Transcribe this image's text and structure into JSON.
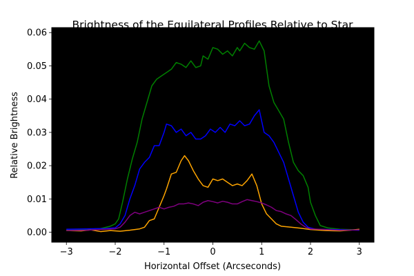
{
  "chart_data": {
    "type": "line",
    "title": "Brightness of the Equilateral Profiles Relative to Star",
    "xlabel": "Horizontal Offset (Arcseconds)",
    "ylabel": "Relative Brightness",
    "xlim": [
      -3.3,
      3.3
    ],
    "ylim": [
      -0.003,
      0.0615
    ],
    "xticks": [
      -3,
      -2,
      -1,
      0,
      1,
      2,
      3
    ],
    "xtick_labels": [
      "−3",
      "−2",
      "−1",
      "0",
      "1",
      "2",
      "3"
    ],
    "yticks": [
      0.0,
      0.01,
      0.02,
      0.03,
      0.04,
      0.05,
      0.06
    ],
    "ytick_labels": [
      "0.00",
      "0.01",
      "0.02",
      "0.03",
      "0.04",
      "0.05",
      "0.06"
    ],
    "plot_background": "#000000",
    "grid": false,
    "legend": "none",
    "series": [
      {
        "color": "#008000",
        "points": [
          [
            -3.0,
            0.0008
          ],
          [
            -2.6,
            0.0009
          ],
          [
            -2.3,
            0.0011
          ],
          [
            -2.1,
            0.0018
          ],
          [
            -2.0,
            0.0025
          ],
          [
            -1.93,
            0.004
          ],
          [
            -1.85,
            0.009
          ],
          [
            -1.75,
            0.016
          ],
          [
            -1.65,
            0.022
          ],
          [
            -1.55,
            0.027
          ],
          [
            -1.45,
            0.034
          ],
          [
            -1.35,
            0.039
          ],
          [
            -1.25,
            0.044
          ],
          [
            -1.15,
            0.046
          ],
          [
            -1.05,
            0.047
          ],
          [
            -0.95,
            0.048
          ],
          [
            -0.85,
            0.049
          ],
          [
            -0.75,
            0.051
          ],
          [
            -0.65,
            0.0505
          ],
          [
            -0.55,
            0.0495
          ],
          [
            -0.45,
            0.0515
          ],
          [
            -0.35,
            0.0495
          ],
          [
            -0.25,
            0.05
          ],
          [
            -0.2,
            0.053
          ],
          [
            -0.1,
            0.052
          ],
          [
            0.0,
            0.0555
          ],
          [
            0.1,
            0.055
          ],
          [
            0.2,
            0.0535
          ],
          [
            0.3,
            0.0545
          ],
          [
            0.4,
            0.053
          ],
          [
            0.5,
            0.0555
          ],
          [
            0.55,
            0.0545
          ],
          [
            0.65,
            0.0568
          ],
          [
            0.75,
            0.0555
          ],
          [
            0.85,
            0.055
          ],
          [
            0.95,
            0.0575
          ],
          [
            1.05,
            0.0545
          ],
          [
            1.15,
            0.044
          ],
          [
            1.25,
            0.039
          ],
          [
            1.35,
            0.0365
          ],
          [
            1.45,
            0.034
          ],
          [
            1.55,
            0.027
          ],
          [
            1.65,
            0.021
          ],
          [
            1.75,
            0.0185
          ],
          [
            1.85,
            0.017
          ],
          [
            1.95,
            0.0135
          ],
          [
            2.0,
            0.009
          ],
          [
            2.1,
            0.005
          ],
          [
            2.2,
            0.002
          ],
          [
            2.35,
            0.0013
          ],
          [
            2.6,
            0.0009
          ],
          [
            3.0,
            0.0007
          ]
        ]
      },
      {
        "color": "#0000ff",
        "points": [
          [
            -3.0,
            0.0009
          ],
          [
            -2.6,
            0.001
          ],
          [
            -2.2,
            0.0011
          ],
          [
            -2.0,
            0.0013
          ],
          [
            -1.9,
            0.0025
          ],
          [
            -1.8,
            0.005
          ],
          [
            -1.7,
            0.01
          ],
          [
            -1.6,
            0.014
          ],
          [
            -1.5,
            0.019
          ],
          [
            -1.4,
            0.021
          ],
          [
            -1.3,
            0.0225
          ],
          [
            -1.2,
            0.026
          ],
          [
            -1.1,
            0.026
          ],
          [
            -1.0,
            0.03
          ],
          [
            -0.95,
            0.0325
          ],
          [
            -0.85,
            0.032
          ],
          [
            -0.75,
            0.03
          ],
          [
            -0.65,
            0.031
          ],
          [
            -0.55,
            0.029
          ],
          [
            -0.45,
            0.03
          ],
          [
            -0.35,
            0.028
          ],
          [
            -0.25,
            0.028
          ],
          [
            -0.15,
            0.029
          ],
          [
            -0.05,
            0.031
          ],
          [
            0.05,
            0.03
          ],
          [
            0.15,
            0.0315
          ],
          [
            0.25,
            0.03
          ],
          [
            0.35,
            0.0325
          ],
          [
            0.45,
            0.032
          ],
          [
            0.55,
            0.0335
          ],
          [
            0.65,
            0.032
          ],
          [
            0.75,
            0.0325
          ],
          [
            0.85,
            0.035
          ],
          [
            0.95,
            0.0368
          ],
          [
            1.05,
            0.03
          ],
          [
            1.15,
            0.029
          ],
          [
            1.25,
            0.027
          ],
          [
            1.35,
            0.024
          ],
          [
            1.45,
            0.021
          ],
          [
            1.55,
            0.016
          ],
          [
            1.65,
            0.011
          ],
          [
            1.75,
            0.006
          ],
          [
            1.85,
            0.003
          ],
          [
            1.95,
            0.0015
          ],
          [
            2.1,
            0.0009
          ],
          [
            2.5,
            0.0008
          ],
          [
            3.0,
            0.0006
          ]
        ]
      },
      {
        "color": "#ffa500",
        "points": [
          [
            -3.0,
            0.0005
          ],
          [
            -2.7,
            0.0004
          ],
          [
            -2.5,
            0.0007
          ],
          [
            -2.3,
            0.0002
          ],
          [
            -2.1,
            0.0005
          ],
          [
            -1.9,
            0.0003
          ],
          [
            -1.7,
            0.0006
          ],
          [
            -1.5,
            0.001
          ],
          [
            -1.4,
            0.0015
          ],
          [
            -1.3,
            0.0035
          ],
          [
            -1.2,
            0.004
          ],
          [
            -1.1,
            0.0075
          ],
          [
            -1.0,
            0.011
          ],
          [
            -0.95,
            0.013
          ],
          [
            -0.85,
            0.0175
          ],
          [
            -0.75,
            0.018
          ],
          [
            -0.65,
            0.0215
          ],
          [
            -0.58,
            0.023
          ],
          [
            -0.5,
            0.0215
          ],
          [
            -0.4,
            0.0185
          ],
          [
            -0.3,
            0.016
          ],
          [
            -0.2,
            0.014
          ],
          [
            -0.1,
            0.0135
          ],
          [
            0.0,
            0.016
          ],
          [
            0.1,
            0.0155
          ],
          [
            0.2,
            0.016
          ],
          [
            0.3,
            0.015
          ],
          [
            0.4,
            0.014
          ],
          [
            0.5,
            0.0145
          ],
          [
            0.6,
            0.014
          ],
          [
            0.7,
            0.0155
          ],
          [
            0.8,
            0.0175
          ],
          [
            0.9,
            0.014
          ],
          [
            1.0,
            0.0085
          ],
          [
            1.1,
            0.0055
          ],
          [
            1.2,
            0.004
          ],
          [
            1.3,
            0.0025
          ],
          [
            1.4,
            0.0018
          ],
          [
            1.6,
            0.0015
          ],
          [
            1.8,
            0.0012
          ],
          [
            2.0,
            0.0008
          ],
          [
            2.3,
            0.0005
          ],
          [
            2.6,
            0.0004
          ],
          [
            2.8,
            0.0006
          ],
          [
            3.0,
            0.0009
          ]
        ]
      },
      {
        "color": "#800080",
        "points": [
          [
            -3.0,
            0.0005
          ],
          [
            -2.6,
            0.0006
          ],
          [
            -2.3,
            0.0008
          ],
          [
            -2.0,
            0.001
          ],
          [
            -1.9,
            0.0015
          ],
          [
            -1.8,
            0.003
          ],
          [
            -1.7,
            0.005
          ],
          [
            -1.6,
            0.006
          ],
          [
            -1.5,
            0.0055
          ],
          [
            -1.4,
            0.006
          ],
          [
            -1.3,
            0.0065
          ],
          [
            -1.2,
            0.007
          ],
          [
            -1.1,
            0.0075
          ],
          [
            -1.0,
            0.007
          ],
          [
            -0.9,
            0.0075
          ],
          [
            -0.8,
            0.0078
          ],
          [
            -0.7,
            0.0085
          ],
          [
            -0.6,
            0.0085
          ],
          [
            -0.5,
            0.0088
          ],
          [
            -0.4,
            0.0085
          ],
          [
            -0.3,
            0.008
          ],
          [
            -0.2,
            0.009
          ],
          [
            -0.1,
            0.0095
          ],
          [
            0.0,
            0.0092
          ],
          [
            0.1,
            0.0088
          ],
          [
            0.2,
            0.0093
          ],
          [
            0.3,
            0.009
          ],
          [
            0.4,
            0.0085
          ],
          [
            0.5,
            0.0085
          ],
          [
            0.6,
            0.0092
          ],
          [
            0.7,
            0.0098
          ],
          [
            0.8,
            0.0095
          ],
          [
            0.9,
            0.0092
          ],
          [
            1.0,
            0.0088
          ],
          [
            1.1,
            0.0082
          ],
          [
            1.2,
            0.0075
          ],
          [
            1.3,
            0.0065
          ],
          [
            1.4,
            0.0062
          ],
          [
            1.5,
            0.0055
          ],
          [
            1.6,
            0.005
          ],
          [
            1.7,
            0.0038
          ],
          [
            1.8,
            0.0025
          ],
          [
            1.9,
            0.0015
          ],
          [
            2.0,
            0.001
          ],
          [
            2.3,
            0.0008
          ],
          [
            2.6,
            0.0006
          ],
          [
            3.0,
            0.0007
          ]
        ]
      }
    ]
  }
}
